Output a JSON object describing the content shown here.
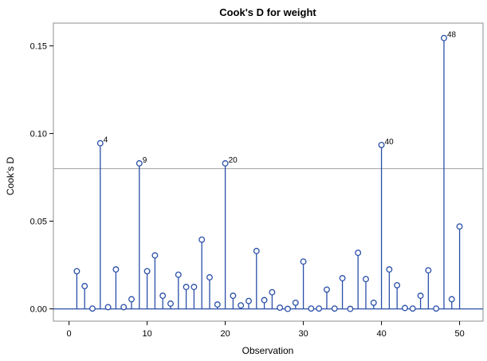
{
  "chart_data": {
    "type": "needle",
    "title": "Cook's D for weight",
    "xlabel": "Observation",
    "ylabel": "Cook's D",
    "xlim": [
      -2,
      53
    ],
    "ylim": [
      -0.007,
      0.163
    ],
    "xticks": [
      0,
      10,
      20,
      30,
      40,
      50
    ],
    "yticks": [
      0.0,
      0.05,
      0.1,
      0.15
    ],
    "ytick_labels": [
      "0.00",
      "0.05",
      "0.10",
      "0.15"
    ],
    "reference_line": 0.08,
    "baseline": 0,
    "grid": false,
    "colors": {
      "needle": "#2a4fa8",
      "marker": "#2a4fa8",
      "reference": "#a0a0a0",
      "frame": "#8c8c8c"
    },
    "labeled_points": [
      4,
      9,
      20,
      40,
      48
    ],
    "x": [
      1,
      2,
      3,
      4,
      5,
      6,
      7,
      8,
      9,
      10,
      11,
      12,
      13,
      14,
      15,
      16,
      17,
      18,
      19,
      20,
      21,
      22,
      23,
      24,
      25,
      26,
      27,
      28,
      29,
      30,
      31,
      32,
      33,
      34,
      35,
      36,
      37,
      38,
      39,
      40,
      41,
      42,
      43,
      44,
      45,
      46,
      47,
      48,
      49,
      50
    ],
    "y": [
      0.0215,
      0.013,
      0.0002,
      0.0945,
      0.001,
      0.0225,
      0.001,
      0.0055,
      0.083,
      0.0215,
      0.0305,
      0.0075,
      0.003,
      0.0195,
      0.0125,
      0.0125,
      0.0395,
      0.018,
      0.0025,
      0.083,
      0.0075,
      0.002,
      0.0045,
      0.033,
      0.005,
      0.0095,
      0.0007,
      0.0,
      0.0035,
      0.027,
      0.0002,
      0.0002,
      0.011,
      0.0002,
      0.0175,
      0.0,
      0.032,
      0.017,
      0.0035,
      0.0935,
      0.0225,
      0.0135,
      0.0005,
      0.0002,
      0.0075,
      0.022,
      0.0002,
      0.1545,
      0.0055,
      0.047
    ]
  }
}
